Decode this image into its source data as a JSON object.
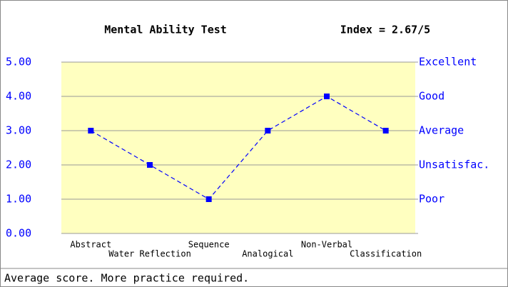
{
  "chart_data": {
    "type": "line",
    "title": "Mental Ability Test",
    "subtitle": "Index = 2.67/5",
    "categories": [
      "Abstract",
      "Water Reflection",
      "Sequence",
      "Analogical",
      "Non-Verbal",
      "Classification"
    ],
    "series": [
      {
        "color": "#0000ff",
        "values": [
          3,
          2,
          1,
          3,
          4,
          3
        ]
      }
    ],
    "line_style": "dashed",
    "plot_background": "#ffffc0",
    "ylim": [
      0,
      5
    ],
    "yticks": [
      {
        "value": 0,
        "label": "0.00"
      },
      {
        "value": 1,
        "label": "1.00"
      },
      {
        "value": 2,
        "label": "2.00"
      },
      {
        "value": 3,
        "label": "3.00"
      },
      {
        "value": 4,
        "label": "4.00"
      },
      {
        "value": 5,
        "label": "5.00"
      }
    ],
    "y2lim": [
      0,
      5
    ],
    "y2ticks": [
      {
        "value": 1,
        "label": "Poor"
      },
      {
        "value": 2,
        "label": "Unsatisfac."
      },
      {
        "value": 3,
        "label": "Average"
      },
      {
        "value": 4,
        "label": "Good"
      },
      {
        "value": 5,
        "label": "Excellent"
      }
    ],
    "grid": true
  },
  "status_text": "Average score. More practice required."
}
